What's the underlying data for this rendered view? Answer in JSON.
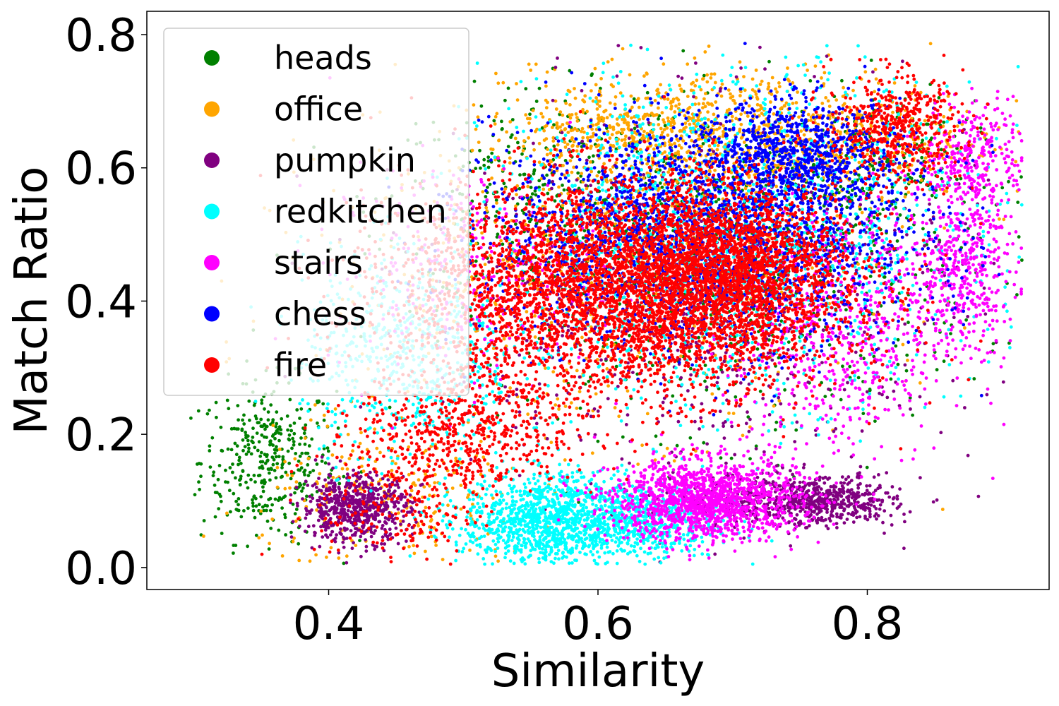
{
  "chart_data": {
    "type": "scatter",
    "title": "",
    "xlabel": "Similarity",
    "ylabel": "Match Ratio",
    "xlim": [
      0.265,
      0.935
    ],
    "ylim": [
      -0.033,
      0.835
    ],
    "xticks": [
      0.4,
      0.6,
      0.8
    ],
    "xtick_labels": [
      "0.4",
      "0.6",
      "0.8"
    ],
    "yticks": [
      0.0,
      0.2,
      0.4,
      0.6,
      0.8
    ],
    "ytick_labels": [
      "0.0",
      "0.2",
      "0.4",
      "0.6",
      "0.8"
    ],
    "grid": false,
    "legend_position": "upper-left",
    "series": [
      {
        "name": "heads",
        "color": "#008000",
        "clusters": [
          {
            "x": 0.355,
            "y": 0.16,
            "sx": 0.025,
            "sy": 0.06,
            "n": 380
          },
          {
            "x": 0.56,
            "y": 0.55,
            "sx": 0.06,
            "sy": 0.08,
            "n": 300
          },
          {
            "x": 0.7,
            "y": 0.45,
            "sx": 0.09,
            "sy": 0.12,
            "n": 700
          },
          {
            "x": 0.8,
            "y": 0.6,
            "sx": 0.04,
            "sy": 0.05,
            "n": 200
          }
        ]
      },
      {
        "name": "office",
        "color": "#FFA500",
        "clusters": [
          {
            "x": 0.72,
            "y": 0.65,
            "sx": 0.08,
            "sy": 0.05,
            "n": 900
          },
          {
            "x": 0.62,
            "y": 0.66,
            "sx": 0.04,
            "sy": 0.03,
            "n": 250
          },
          {
            "x": 0.45,
            "y": 0.1,
            "sx": 0.05,
            "sy": 0.06,
            "n": 250
          },
          {
            "x": 0.6,
            "y": 0.45,
            "sx": 0.1,
            "sy": 0.12,
            "n": 700
          }
        ]
      },
      {
        "name": "pumpkin",
        "color": "#800080",
        "clusters": [
          {
            "x": 0.42,
            "y": 0.09,
            "sx": 0.02,
            "sy": 0.025,
            "n": 650
          },
          {
            "x": 0.74,
            "y": 0.1,
            "sx": 0.04,
            "sy": 0.02,
            "n": 500
          },
          {
            "x": 0.78,
            "y": 0.1,
            "sx": 0.02,
            "sy": 0.015,
            "n": 220
          },
          {
            "x": 0.68,
            "y": 0.42,
            "sx": 0.1,
            "sy": 0.14,
            "n": 800
          }
        ]
      },
      {
        "name": "redkitchen",
        "color": "#00FFFF",
        "clusters": [
          {
            "x": 0.56,
            "y": 0.07,
            "sx": 0.03,
            "sy": 0.035,
            "n": 1100
          },
          {
            "x": 0.63,
            "y": 0.07,
            "sx": 0.03,
            "sy": 0.03,
            "n": 600
          },
          {
            "x": 0.46,
            "y": 0.32,
            "sx": 0.04,
            "sy": 0.08,
            "n": 600
          },
          {
            "x": 0.7,
            "y": 0.5,
            "sx": 0.09,
            "sy": 0.12,
            "n": 1500
          }
        ]
      },
      {
        "name": "stairs",
        "color": "#FF00FF",
        "clusters": [
          {
            "x": 0.68,
            "y": 0.1,
            "sx": 0.035,
            "sy": 0.03,
            "n": 1400
          },
          {
            "x": 0.87,
            "y": 0.45,
            "sx": 0.02,
            "sy": 0.06,
            "n": 450
          },
          {
            "x": 0.88,
            "y": 0.62,
            "sx": 0.02,
            "sy": 0.04,
            "n": 300
          },
          {
            "x": 0.78,
            "y": 0.35,
            "sx": 0.04,
            "sy": 0.1,
            "n": 600
          },
          {
            "x": 0.5,
            "y": 0.45,
            "sx": 0.05,
            "sy": 0.08,
            "n": 300
          }
        ]
      },
      {
        "name": "chess",
        "color": "#0000FF",
        "clusters": [
          {
            "x": 0.68,
            "y": 0.5,
            "sx": 0.08,
            "sy": 0.08,
            "n": 2200
          },
          {
            "x": 0.75,
            "y": 0.62,
            "sx": 0.04,
            "sy": 0.04,
            "n": 800
          }
        ]
      },
      {
        "name": "fire",
        "color": "#FF0000",
        "clusters": [
          {
            "x": 0.62,
            "y": 0.42,
            "sx": 0.08,
            "sy": 0.08,
            "n": 4200
          },
          {
            "x": 0.7,
            "y": 0.45,
            "sx": 0.04,
            "sy": 0.06,
            "n": 1500
          },
          {
            "x": 0.82,
            "y": 0.66,
            "sx": 0.025,
            "sy": 0.04,
            "n": 500
          },
          {
            "x": 0.5,
            "y": 0.2,
            "sx": 0.04,
            "sy": 0.05,
            "n": 600
          },
          {
            "x": 0.45,
            "y": 0.08,
            "sx": 0.03,
            "sy": 0.04,
            "n": 150
          }
        ]
      }
    ]
  }
}
